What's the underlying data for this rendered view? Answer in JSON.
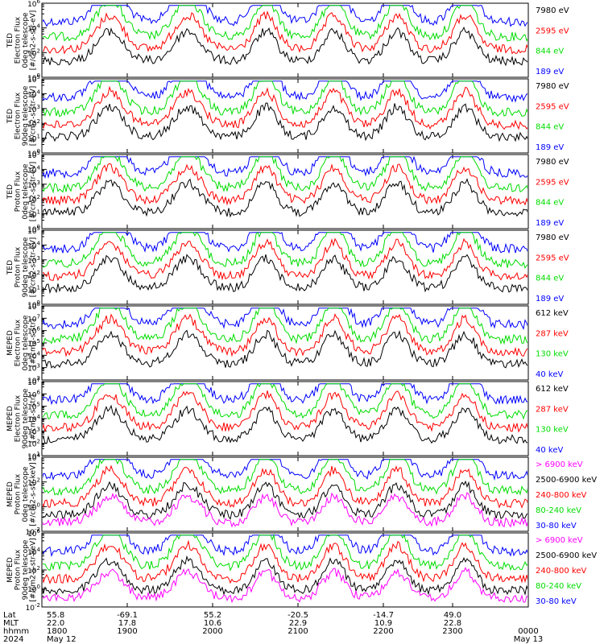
{
  "chart_data": [
    {
      "type": "line",
      "ylabel": [
        "TED",
        "Electron Flux",
        "0deg telescope",
        "[#/cm2-s-str-eV]"
      ],
      "ylim": [
        1,
        1000000
      ],
      "scale": "log",
      "yticks": [
        {
          "base": "10",
          "exp": "6"
        },
        {
          "base": "10",
          "exp": "4"
        },
        {
          "base": "10",
          "exp": "2"
        },
        {
          "base": "10",
          "exp": "0"
        }
      ],
      "legend": [
        {
          "label": "7980 eV",
          "color": "#000000"
        },
        {
          "label": "2595 eV",
          "color": "#ff0000"
        },
        {
          "label": "844 eV",
          "color": "#00dd00"
        },
        {
          "label": "189 eV",
          "color": "#0000ff"
        }
      ]
    },
    {
      "type": "line",
      "ylabel": [
        "TED",
        "Electron Flux",
        "90deg telescope",
        "[#/cm2-s-str-eV]"
      ],
      "ylim": [
        1,
        100000
      ],
      "scale": "log",
      "yticks": [
        {
          "base": "10",
          "exp": "5"
        },
        {
          "base": "10",
          "exp": "4"
        },
        {
          "base": "10",
          "exp": "3"
        },
        {
          "base": "10",
          "exp": "2"
        },
        {
          "base": "10",
          "exp": "1"
        },
        {
          "base": "10",
          "exp": "0"
        }
      ],
      "legend": [
        {
          "label": "7980 eV",
          "color": "#000000"
        },
        {
          "label": "2595 eV",
          "color": "#ff0000"
        },
        {
          "label": "844 eV",
          "color": "#00dd00"
        },
        {
          "label": "189 eV",
          "color": "#0000ff"
        }
      ]
    },
    {
      "type": "line",
      "ylabel": [
        "TED",
        "Proton Flux",
        "0deg telescope",
        "[#/cm2-s-str-eV]"
      ],
      "ylim": [
        1,
        100000
      ],
      "scale": "log",
      "yticks": [
        {
          "base": "10",
          "exp": "5"
        },
        {
          "base": "10",
          "exp": "4"
        },
        {
          "base": "10",
          "exp": "3"
        },
        {
          "base": "10",
          "exp": "2"
        },
        {
          "base": "10",
          "exp": "1"
        },
        {
          "base": "10",
          "exp": "0"
        }
      ],
      "legend": [
        {
          "label": "7980 eV",
          "color": "#000000"
        },
        {
          "label": "2595 eV",
          "color": "#ff0000"
        },
        {
          "label": "844 eV",
          "color": "#00dd00"
        },
        {
          "label": "189 eV",
          "color": "#0000ff"
        }
      ]
    },
    {
      "type": "line",
      "ylabel": [
        "TED",
        "Proton Flux",
        "90deg telescope",
        "[#/cm2-s-str-eV]"
      ],
      "ylim": [
        1,
        100000
      ],
      "scale": "log",
      "yticks": [
        {
          "base": "10",
          "exp": "5"
        },
        {
          "base": "10",
          "exp": "4"
        },
        {
          "base": "10",
          "exp": "3"
        },
        {
          "base": "10",
          "exp": "2"
        },
        {
          "base": "10",
          "exp": "1"
        },
        {
          "base": "10",
          "exp": "0"
        }
      ],
      "legend": [
        {
          "label": "7980 eV",
          "color": "#000000"
        },
        {
          "label": "2595 eV",
          "color": "#ff0000"
        },
        {
          "label": "844 eV",
          "color": "#00dd00"
        },
        {
          "label": "189 eV",
          "color": "#0000ff"
        }
      ]
    },
    {
      "type": "line",
      "ylabel": [
        "MEPED",
        "Electron Flux",
        "0deg telescope",
        "[#/cm2-s-str]"
      ],
      "ylim": [
        100,
        100000000
      ],
      "scale": "log",
      "yticks": [
        {
          "base": "10",
          "exp": "8"
        },
        {
          "base": "10",
          "exp": "7"
        },
        {
          "base": "10",
          "exp": "6"
        },
        {
          "base": "10",
          "exp": "5"
        },
        {
          "base": "10",
          "exp": "4"
        },
        {
          "base": "10",
          "exp": "3"
        },
        {
          "base": "10",
          "exp": "2"
        }
      ],
      "legend": [
        {
          "label": "612 keV",
          "color": "#000000"
        },
        {
          "label": "287 keV",
          "color": "#ff0000"
        },
        {
          "label": "130 keV",
          "color": "#00dd00"
        },
        {
          "label": "40 keV",
          "color": "#0000ff"
        }
      ]
    },
    {
      "type": "line",
      "ylabel": [
        "MEPED",
        "Electron Flux",
        "90deg telescope",
        "[#/cm2-s-str]"
      ],
      "ylim": [
        10,
        10000000
      ],
      "scale": "log",
      "yticks": [
        {
          "base": "10",
          "exp": "7"
        },
        {
          "base": "10",
          "exp": "6"
        },
        {
          "base": "10",
          "exp": "5"
        },
        {
          "base": "10",
          "exp": "4"
        },
        {
          "base": "10",
          "exp": "3"
        },
        {
          "base": "10",
          "exp": "2"
        },
        {
          "base": "10",
          "exp": "1"
        }
      ],
      "legend": [
        {
          "label": "612 keV",
          "color": "#000000"
        },
        {
          "label": "287 keV",
          "color": "#ff0000"
        },
        {
          "label": "130 keV",
          "color": "#00dd00"
        },
        {
          "label": "40 keV",
          "color": "#0000ff"
        }
      ]
    },
    {
      "type": "line",
      "ylabel": [
        "MEPED",
        "Proton Flux",
        "0deg telescope",
        "[#/cm2-s-str-keV]"
      ],
      "ylim": [
        0.01,
        1000000
      ],
      "scale": "log",
      "yticks": [
        {
          "base": "10",
          "exp": "4"
        },
        {
          "base": "10",
          "exp": "2"
        },
        {
          "base": "10",
          "exp": "0"
        },
        {
          "base": "10",
          "exp": "-2"
        }
      ],
      "legend": [
        {
          "label": "> 6900 keV",
          "color": "#ff00ff"
        },
        {
          "label": "2500-6900 keV",
          "color": "#000000"
        },
        {
          "label": "240-800 keV",
          "color": "#ff0000"
        },
        {
          "label": "80-240 keV",
          "color": "#00dd00"
        },
        {
          "label": "30-80 keV",
          "color": "#0000ff"
        }
      ]
    },
    {
      "type": "line",
      "ylabel": [
        "MEPED",
        "Proton Flux",
        "90deg telescope",
        "[#/cm2-s-str-keV]"
      ],
      "ylim": [
        0.01,
        1000000
      ],
      "scale": "log",
      "yticks": [
        {
          "base": "10",
          "exp": "6"
        },
        {
          "base": "10",
          "exp": "4"
        },
        {
          "base": "10",
          "exp": "2"
        },
        {
          "base": "10",
          "exp": "0"
        },
        {
          "base": "10",
          "exp": "-2"
        }
      ],
      "legend": [
        {
          "label": "> 6900 keV",
          "color": "#ff00ff"
        },
        {
          "label": "2500-6900 keV",
          "color": "#000000"
        },
        {
          "label": "240-800 keV",
          "color": "#ff0000"
        },
        {
          "label": "80-240 keV",
          "color": "#00dd00"
        },
        {
          "label": "30-80 keV",
          "color": "#0000ff"
        }
      ]
    }
  ],
  "x_axis": {
    "row_labels": [
      "Lat",
      "MLT",
      "hhmm",
      "2024"
    ],
    "ticks": [
      {
        "lat": "55.8",
        "mlt": "22.0",
        "hhmm": "1800",
        "date": "May 12"
      },
      {
        "lat": "-69.1",
        "mlt": "17.8",
        "hhmm": "1900",
        "date": ""
      },
      {
        "lat": "55.2",
        "mlt": "10.6",
        "hhmm": "2000",
        "date": ""
      },
      {
        "lat": "-20.5",
        "mlt": "22.9",
        "hhmm": "2100",
        "date": ""
      },
      {
        "lat": "-14.7",
        "mlt": "10.9",
        "hhmm": "2200",
        "date": ""
      },
      {
        "lat": "49.0",
        "mlt": "22.8",
        "hhmm": "2300",
        "date": ""
      },
      {
        "lat": "",
        "mlt": "",
        "hhmm": "0000",
        "date": "May 13"
      }
    ]
  }
}
